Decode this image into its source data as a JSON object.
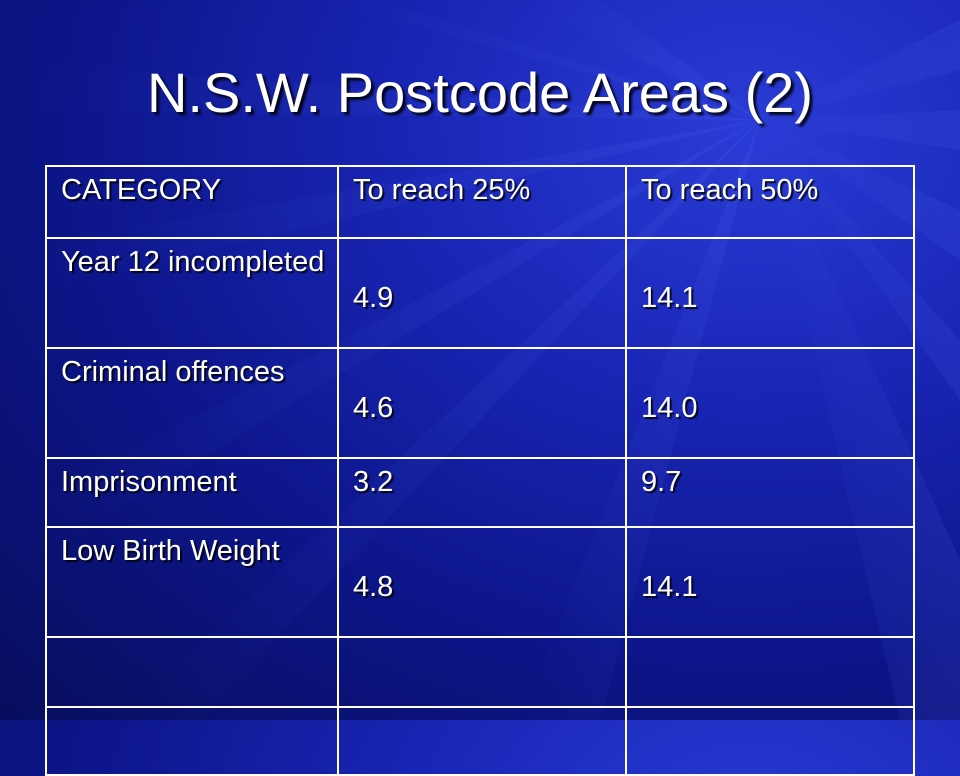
{
  "slide": {
    "title": "N.S.W. Postcode Areas (2)"
  },
  "table": {
    "headers": [
      "CATEGORY",
      "To reach 25%",
      "To reach 50%"
    ],
    "rows": [
      {
        "category": "Year 12 incompleted",
        "to_25": "4.9",
        "to_50": "14.1"
      },
      {
        "category": "Criminal offences",
        "to_25": "4.6",
        "to_50": "14.0"
      },
      {
        "category": "Imprisonment",
        "to_25": "3.2",
        "to_50": "9.7"
      },
      {
        "category": "Low Birth Weight",
        "to_25": "4.8",
        "to_50": "14.1"
      },
      {
        "category": "",
        "to_25": "",
        "to_50": ""
      },
      {
        "category": "",
        "to_25": "",
        "to_50": ""
      }
    ]
  },
  "colors": {
    "background": "#0d168c",
    "text": "#ffffff",
    "grid": "#ffffff"
  }
}
